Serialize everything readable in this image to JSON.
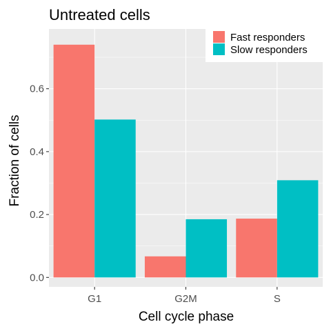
{
  "chart_data": {
    "type": "bar",
    "title": "Untreated cells",
    "xlabel": "Cell cycle phase",
    "ylabel": "Fraction of cells",
    "categories": [
      "G1",
      "G2M",
      "S"
    ],
    "series": [
      {
        "name": "Fast responders",
        "values": [
          0.74,
          0.067,
          0.187
        ],
        "color": "#F8766D"
      },
      {
        "name": "Slow responders",
        "values": [
          0.502,
          0.185,
          0.309
        ],
        "color": "#00BFC4"
      }
    ],
    "ylim": [
      -0.03,
      0.79
    ],
    "yticks": [
      0.0,
      0.2,
      0.4,
      0.6
    ],
    "ytick_labels": [
      "0.0",
      "0.2",
      "0.4",
      "0.6"
    ],
    "grid": true,
    "legend_position": "top-right",
    "panel_background": "#EBEBEB",
    "grid_color": "#FFFFFF"
  }
}
